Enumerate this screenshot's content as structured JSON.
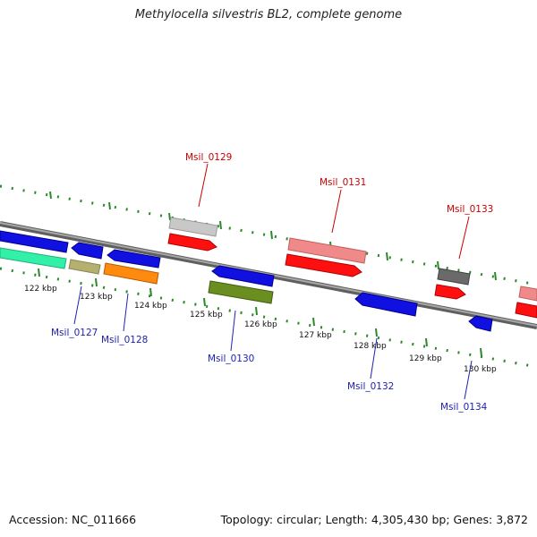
{
  "header": {
    "title": "Methylocella silvestris BL2, complete genome"
  },
  "footer": {
    "accession": "Accession: NC_011666",
    "summary": "Topology: circular; Length: 4,305,430 bp; Genes: 3,872"
  },
  "colors": {
    "forward_label": "#cc0000",
    "reverse_label": "#1f22b0",
    "tick": "#2a8a2a",
    "backbone": "#808080"
  },
  "ticks": [
    {
      "label": "122 kbp"
    },
    {
      "label": "123 kbp"
    },
    {
      "label": "124 kbp"
    },
    {
      "label": "125 kbp"
    },
    {
      "label": "126 kbp"
    },
    {
      "label": "127 kbp"
    },
    {
      "label": "128 kbp"
    },
    {
      "label": "129 kbp"
    },
    {
      "label": "130 kbp"
    }
  ],
  "gene_labels": [
    {
      "name": "Msil_0127",
      "strand": "reverse"
    },
    {
      "name": "Msil_0128",
      "strand": "reverse"
    },
    {
      "name": "Msil_0129",
      "strand": "forward"
    },
    {
      "name": "Msil_0130",
      "strand": "reverse"
    },
    {
      "name": "Msil_0131",
      "strand": "forward"
    },
    {
      "name": "Msil_0132",
      "strand": "reverse"
    },
    {
      "name": "Msil_0133",
      "strand": "forward"
    },
    {
      "name": "Msil_0134",
      "strand": "reverse"
    }
  ]
}
